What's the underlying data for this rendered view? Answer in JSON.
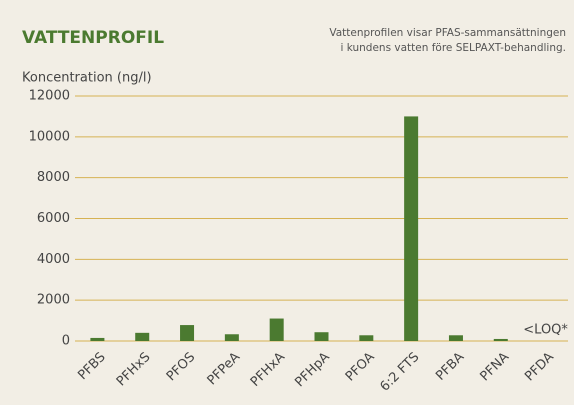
{
  "chart_data": {
    "type": "bar",
    "title": "VATTENPROFIL",
    "subtitle": [
      "Vattenprofilen visar PFAS-sammansättningen",
      "i kundens vatten före SELPAXT-behandling."
    ],
    "y_label": "Koncentration (ng/l)",
    "categories": [
      "PFBS",
      "PFHxS",
      "PFOS",
      "PFPeA",
      "PFHxA",
      "PFHpA",
      "PFOA",
      "6:2 FTS",
      "PFBA",
      "PFNA",
      "PFDA"
    ],
    "values": [
      150,
      400,
      780,
      330,
      1100,
      430,
      280,
      11000,
      280,
      100,
      null
    ],
    "color": "#4b7a30",
    "annotation": "<LOQ*",
    "ylim": [
      0,
      12000
    ],
    "yticks": [
      0,
      2000,
      4000,
      6000,
      8000,
      10000,
      12000
    ],
    "grid": true
  }
}
